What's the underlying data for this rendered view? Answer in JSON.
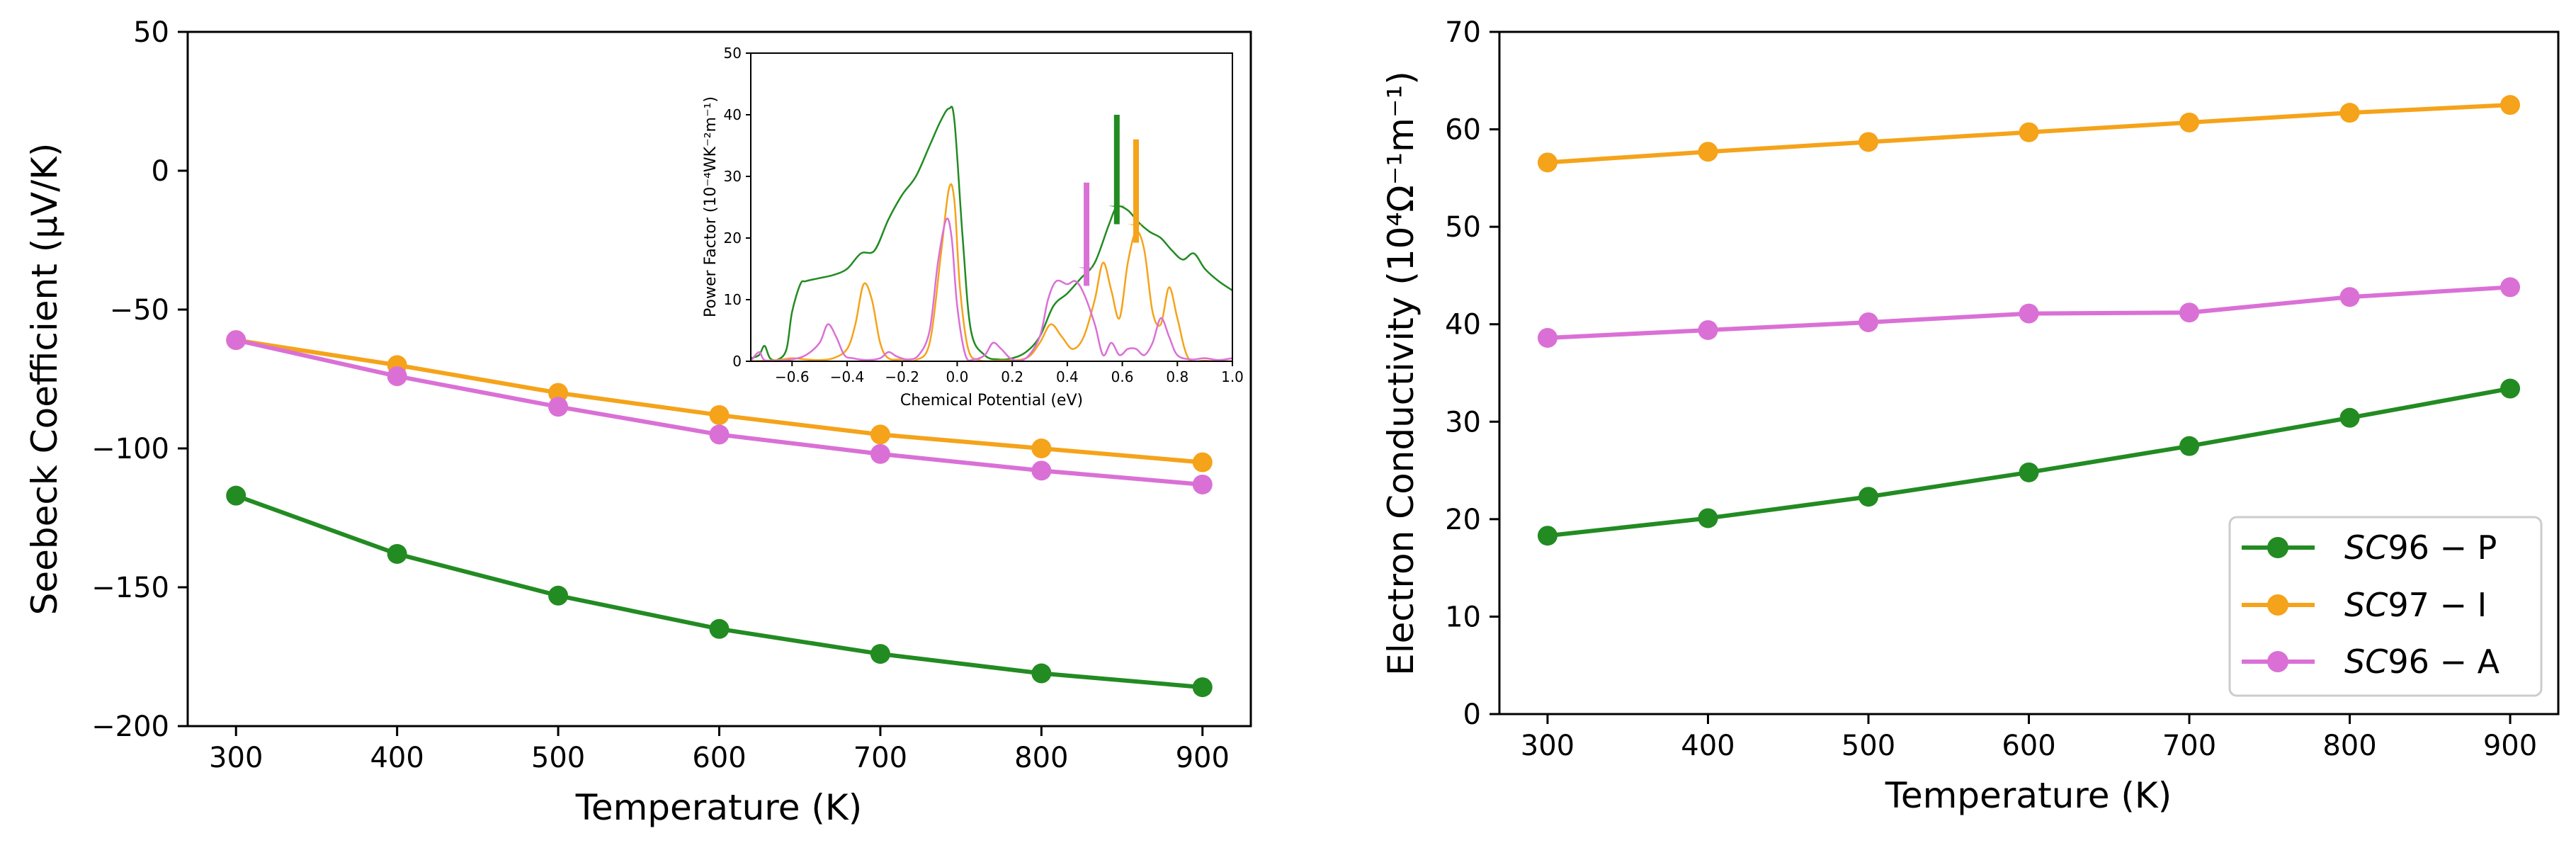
{
  "chart_data": [
    {
      "id": "left",
      "type": "line",
      "xlabel": "Temperature (K)",
      "ylabel": "Seebeck Coefficient (μV/K)",
      "xlim": [
        270,
        930
      ],
      "ylim": [
        -200,
        50
      ],
      "xticks": [
        300,
        400,
        500,
        600,
        700,
        800,
        900
      ],
      "yticks": [
        50,
        0,
        -50,
        -100,
        -150,
        -200
      ],
      "ytick_labels": [
        "50",
        "0",
        "−50",
        "−100",
        "−150",
        "−200"
      ],
      "series": [
        {
          "name": "SC96-P",
          "color": "#228b22",
          "x": [
            300,
            400,
            500,
            600,
            700,
            800,
            900
          ],
          "y": [
            -117,
            -138,
            -153,
            -165,
            -174,
            -181,
            -186
          ]
        },
        {
          "name": "SC97-I",
          "color": "#f5a31a",
          "x": [
            300,
            400,
            500,
            600,
            700,
            800,
            900
          ],
          "y": [
            -61,
            -70,
            -80,
            -88,
            -95,
            -100,
            -105
          ]
        },
        {
          "name": "SC96-A",
          "color": "#da70d6",
          "x": [
            300,
            400,
            500,
            600,
            700,
            800,
            900
          ],
          "y": [
            -61,
            -74,
            -85,
            -95,
            -102,
            -108,
            -113
          ]
        }
      ]
    },
    {
      "id": "inset",
      "type": "line",
      "xlabel": "Chemical Potential (eV)",
      "ylabel": "Power Factor (10⁻⁴WK⁻²m⁻¹)",
      "xlim": [
        -0.75,
        1.0
      ],
      "ylim": [
        0,
        50
      ],
      "xticks": [
        -0.6,
        -0.4,
        -0.2,
        0.0,
        0.2,
        0.4,
        0.6,
        0.8,
        1.0
      ],
      "xtick_labels": [
        "−0.6",
        "−0.4",
        "−0.2",
        "0.0",
        "0.2",
        "0.4",
        "0.6",
        "0.8",
        "1.0"
      ],
      "yticks": [
        0,
        10,
        20,
        30,
        40,
        50
      ],
      "series": [
        {
          "name": "SC96-P",
          "color": "#228b22",
          "x": [
            -0.75,
            -0.72,
            -0.7,
            -0.68,
            -0.65,
            -0.62,
            -0.6,
            -0.57,
            -0.55,
            -0.5,
            -0.45,
            -0.4,
            -0.35,
            -0.3,
            -0.25,
            -0.2,
            -0.15,
            -0.1,
            -0.06,
            -0.03,
            -0.01,
            0.02,
            0.05,
            0.1,
            0.15,
            0.2,
            0.25,
            0.3,
            0.35,
            0.4,
            0.45,
            0.5,
            0.55,
            0.58,
            0.62,
            0.66,
            0.7,
            0.74,
            0.78,
            0.82,
            0.86,
            0.9,
            0.95,
            1.0
          ],
          "y": [
            0.5,
            1,
            2.5,
            0.5,
            0.3,
            2,
            8,
            12.5,
            13,
            13.5,
            14,
            15,
            17.5,
            18,
            23,
            27,
            30,
            35,
            39,
            41,
            39,
            20,
            5,
            1,
            0.3,
            0.5,
            1.5,
            4,
            9,
            11,
            13.5,
            16,
            22,
            25,
            24.5,
            22.5,
            21,
            20,
            18,
            16.5,
            17.5,
            15,
            13,
            11.5
          ]
        },
        {
          "name": "SC97-I",
          "color": "#f5a31a",
          "x": [
            -0.75,
            -0.7,
            -0.65,
            -0.6,
            -0.55,
            -0.5,
            -0.45,
            -0.4,
            -0.37,
            -0.34,
            -0.31,
            -0.28,
            -0.25,
            -0.2,
            -0.15,
            -0.1,
            -0.06,
            -0.03,
            -0.01,
            0.01,
            0.04,
            0.08,
            0.15,
            0.25,
            0.3,
            0.34,
            0.38,
            0.42,
            0.46,
            0.5,
            0.53,
            0.56,
            0.59,
            0.62,
            0.65,
            0.68,
            0.71,
            0.74,
            0.77,
            0.8,
            0.84,
            0.9,
            1.0
          ],
          "y": [
            0,
            0.1,
            0.2,
            0.5,
            0.3,
            0.2,
            0.5,
            2,
            6,
            12.5,
            10,
            3,
            0.5,
            0.3,
            0.2,
            3,
            17,
            28,
            26,
            12,
            2,
            0.2,
            0.1,
            0.5,
            3,
            6,
            4,
            2,
            4,
            10,
            16,
            11.5,
            7,
            16,
            21,
            18,
            8,
            6,
            12,
            7,
            0.5,
            0.1,
            0
          ]
        },
        {
          "name": "SC96-A",
          "color": "#da70d6",
          "x": [
            -0.75,
            -0.72,
            -0.7,
            -0.65,
            -0.6,
            -0.55,
            -0.5,
            -0.47,
            -0.44,
            -0.41,
            -0.38,
            -0.33,
            -0.28,
            -0.25,
            -0.22,
            -0.18,
            -0.14,
            -0.1,
            -0.07,
            -0.04,
            -0.02,
            0.0,
            0.03,
            0.06,
            0.1,
            0.13,
            0.16,
            0.2,
            0.25,
            0.3,
            0.33,
            0.36,
            0.4,
            0.43,
            0.46,
            0.5,
            0.53,
            0.56,
            0.59,
            0.62,
            0.65,
            0.68,
            0.71,
            0.74,
            0.77,
            0.8,
            0.85,
            0.9,
            0.95,
            1.0
          ],
          "y": [
            0,
            1.5,
            0.2,
            0.1,
            0.3,
            1,
            3,
            6,
            4,
            1,
            0.5,
            0.2,
            0.5,
            1.5,
            0.8,
            0.3,
            1,
            5,
            16,
            23,
            20,
            9,
            1,
            0.3,
            1,
            3,
            2,
            0.3,
            0.5,
            4,
            10,
            13,
            12.5,
            13,
            11,
            6,
            1,
            3,
            1,
            2,
            2,
            1,
            3,
            7,
            4,
            1,
            0.3,
            0.5,
            0.2,
            0.5
          ]
        }
      ],
      "arrows": [
        {
          "color": "#da70d6",
          "x": 0.47,
          "y_from": 29,
          "y_to": 15
        },
        {
          "color": "#228b22",
          "x": 0.58,
          "y_from": 40,
          "y_to": 25
        },
        {
          "color": "#f5a31a",
          "x": 0.65,
          "y_from": 36,
          "y_to": 22
        }
      ]
    },
    {
      "id": "right",
      "type": "line",
      "xlabel": "Temperature (K)",
      "ylabel": "Electron Conductivity (10⁴Ω⁻¹m⁻¹)",
      "xlim": [
        270,
        930
      ],
      "ylim": [
        0,
        70
      ],
      "xticks": [
        300,
        400,
        500,
        600,
        700,
        800,
        900
      ],
      "yticks": [
        0,
        10,
        20,
        30,
        40,
        50,
        60,
        70
      ],
      "legend": {
        "placement": "lower-right",
        "entries": [
          {
            "prefix": "SC",
            "rest": "96 − P",
            "color": "#228b22"
          },
          {
            "prefix": "SC",
            "rest": "97 − I",
            "color": "#f5a31a"
          },
          {
            "prefix": "SC",
            "rest": "96 − A",
            "color": "#da70d6"
          }
        ]
      },
      "series": [
        {
          "name": "SC96-P",
          "color": "#228b22",
          "x": [
            300,
            400,
            500,
            600,
            700,
            800,
            900
          ],
          "y": [
            18.3,
            20.1,
            22.3,
            24.8,
            27.5,
            30.4,
            33.4
          ]
        },
        {
          "name": "SC97-I",
          "color": "#f5a31a",
          "x": [
            300,
            400,
            500,
            600,
            700,
            800,
            900
          ],
          "y": [
            56.6,
            57.7,
            58.7,
            59.7,
            60.7,
            61.7,
            62.5
          ]
        },
        {
          "name": "SC96-A",
          "color": "#da70d6",
          "x": [
            300,
            400,
            500,
            600,
            700,
            800,
            900
          ],
          "y": [
            38.6,
            39.4,
            40.2,
            41.1,
            41.2,
            42.8,
            43.8
          ]
        }
      ]
    }
  ]
}
